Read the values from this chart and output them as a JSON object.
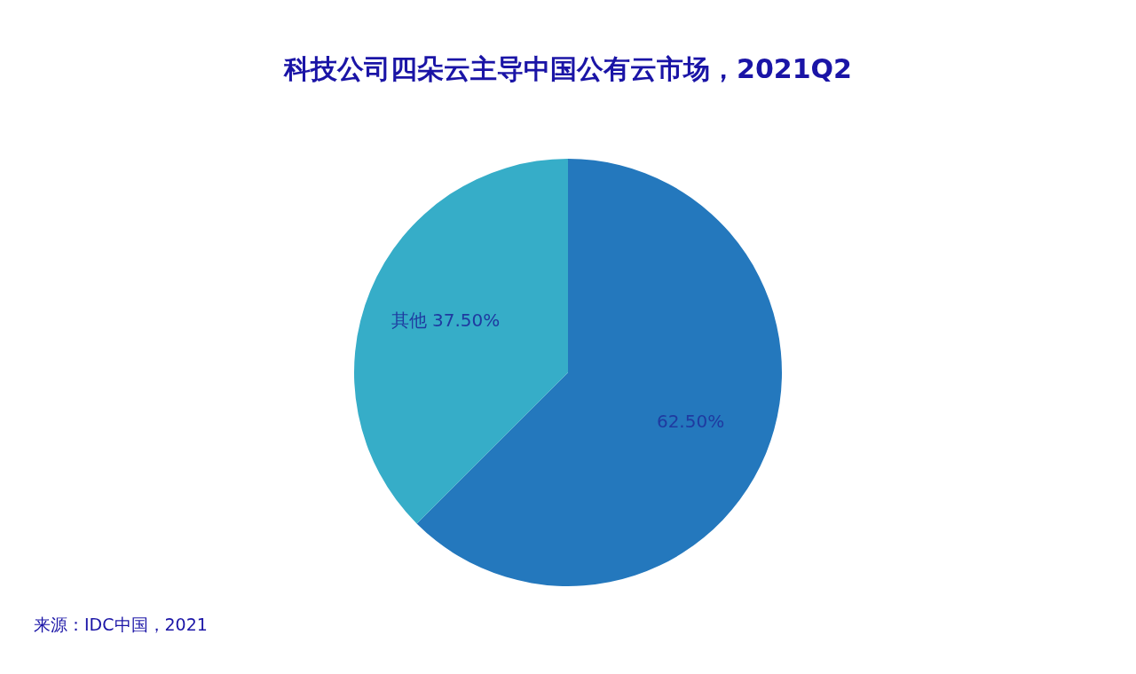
{
  "chart_data": {
    "type": "pie",
    "title": "科技公司四朵云主导中国公有云市场，2021Q2",
    "categories": [
      null,
      "其他"
    ],
    "values": [
      62.5,
      37.5
    ],
    "value_labels": [
      "62.50%",
      "37.50%"
    ],
    "colors": [
      "#2478bd",
      "#36adc8"
    ],
    "annotations": [
      "来源：IDC中国，2021"
    ]
  }
}
